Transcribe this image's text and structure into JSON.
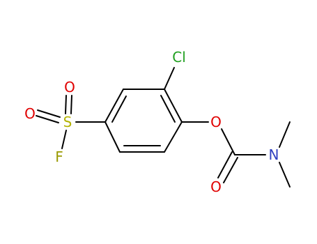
{
  "atoms": [
    {
      "label": "Cl"
    },
    {
      "label": "O"
    },
    {
      "label": "O"
    },
    {
      "label": "S"
    },
    {
      "label": "F"
    },
    {
      "label": "O"
    },
    {
      "label": "N"
    },
    {
      "label": "O"
    }
  ]
}
